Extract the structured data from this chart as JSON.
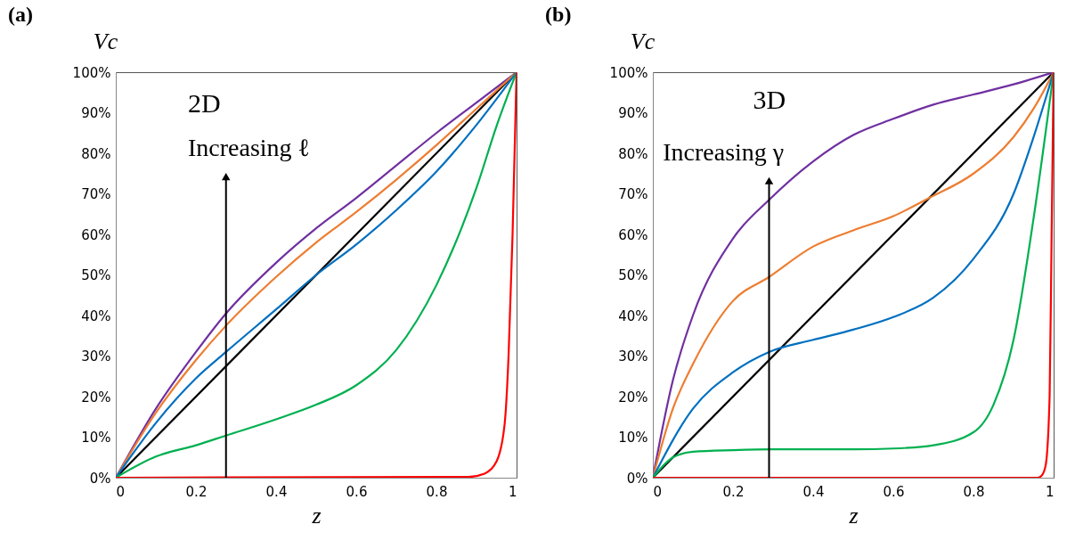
{
  "chart_data": [
    {
      "type": "line",
      "title": "(a)",
      "xlabel": "z",
      "ylabel": "Vc",
      "annotations": [
        "2D",
        "Increasing ℓ"
      ],
      "xlim": [
        0,
        1
      ],
      "ylim": [
        0,
        100
      ],
      "xticks": [
        0,
        0.2,
        0.4,
        0.6,
        0.8,
        1
      ],
      "yticks": [
        {
          "value": 0,
          "label": "0%"
        },
        {
          "value": 10,
          "label": "10%"
        },
        {
          "value": 20,
          "label": "20%"
        },
        {
          "value": 30,
          "label": "30%"
        },
        {
          "value": 40,
          "label": "40%"
        },
        {
          "value": 50,
          "label": "50%"
        },
        {
          "value": 60,
          "label": "60%"
        },
        {
          "value": 70,
          "label": "70%"
        },
        {
          "value": 80,
          "label": "80%"
        },
        {
          "value": 90,
          "label": "90%"
        },
        {
          "value": 100,
          "label": "100%"
        }
      ],
      "grid": false,
      "line_style": "solid",
      "series": [
        {
          "color": "#000000",
          "x": [
            0,
            1
          ],
          "values": [
            0,
            100
          ]
        },
        {
          "color": "#7030a0",
          "x": [
            0,
            0.1,
            0.2,
            0.275,
            0.4,
            0.5,
            0.6,
            0.7,
            0.8,
            0.9,
            1
          ],
          "values": [
            0,
            17,
            31,
            40.5,
            53,
            61.5,
            69,
            77,
            85,
            92.5,
            100
          ]
        },
        {
          "color": "#ed7d31",
          "x": [
            0,
            0.1,
            0.2,
            0.275,
            0.4,
            0.5,
            0.6,
            0.7,
            0.8,
            0.9,
            1
          ],
          "values": [
            0,
            16,
            29,
            37.5,
            49.5,
            58,
            65.5,
            73.5,
            82,
            91,
            100
          ]
        },
        {
          "color": "#0070c0",
          "x": [
            0,
            0.1,
            0.2,
            0.275,
            0.4,
            0.5,
            0.6,
            0.7,
            0.8,
            0.9,
            1
          ],
          "values": [
            0,
            13.5,
            24.5,
            31,
            41.5,
            50,
            57.5,
            66,
            75.5,
            87,
            100
          ]
        },
        {
          "color": "#00b050",
          "x": [
            0,
            0.1,
            0.2,
            0.275,
            0.4,
            0.5,
            0.6,
            0.7,
            0.8,
            0.9,
            0.95,
            1
          ],
          "values": [
            0,
            5.2,
            8,
            10.4,
            14.4,
            18,
            22.8,
            31.5,
            47.5,
            71.5,
            86.7,
            100
          ]
        },
        {
          "color": "#ff0000",
          "x": [
            0,
            0.88,
            0.92,
            0.95,
            0.97,
            0.98,
            0.99,
            1
          ],
          "values": [
            0,
            0.2,
            1,
            4,
            13,
            30,
            60,
            100
          ]
        }
      ]
    },
    {
      "type": "line",
      "title": "(b)",
      "xlabel": "z",
      "ylabel": "Vc",
      "annotations": [
        "3D",
        "Increasing γ"
      ],
      "xlim": [
        0,
        1
      ],
      "ylim": [
        0,
        100
      ],
      "xticks": [
        0,
        0.2,
        0.4,
        0.6,
        0.8,
        1
      ],
      "yticks": [
        {
          "value": 0,
          "label": "0%"
        },
        {
          "value": 10,
          "label": "10%"
        },
        {
          "value": 20,
          "label": "20%"
        },
        {
          "value": 30,
          "label": "30%"
        },
        {
          "value": 40,
          "label": "40%"
        },
        {
          "value": 50,
          "label": "50%"
        },
        {
          "value": 60,
          "label": "60%"
        },
        {
          "value": 70,
          "label": "70%"
        },
        {
          "value": 80,
          "label": "80%"
        },
        {
          "value": 90,
          "label": "90%"
        },
        {
          "value": 100,
          "label": "100%"
        }
      ],
      "grid": false,
      "line_style": "solid",
      "series": [
        {
          "color": "#000000",
          "x": [
            0,
            1
          ],
          "values": [
            0,
            100
          ]
        },
        {
          "color": "#7030a0",
          "x": [
            0,
            0.05,
            0.1,
            0.2,
            0.29,
            0.4,
            0.5,
            0.6,
            0.7,
            0.8,
            0.9,
            1
          ],
          "values": [
            0,
            24,
            40,
            59,
            68.5,
            78,
            84.5,
            88.5,
            92,
            94.5,
            97,
            100
          ]
        },
        {
          "color": "#ed7d31",
          "x": [
            0,
            0.05,
            0.1,
            0.2,
            0.29,
            0.4,
            0.5,
            0.6,
            0.69,
            0.8,
            0.9,
            0.95,
            1
          ],
          "values": [
            0,
            17,
            28,
            43.6,
            49.5,
            57,
            61,
            64.5,
            69,
            75,
            84,
            91,
            100
          ]
        },
        {
          "color": "#0070c0",
          "x": [
            0,
            0.1,
            0.2,
            0.29,
            0.4,
            0.5,
            0.6,
            0.7,
            0.8,
            0.9,
            0.95,
            1
          ],
          "values": [
            0,
            17,
            26,
            31,
            34,
            36.5,
            39.6,
            44.4,
            54,
            70,
            84,
            100
          ]
        },
        {
          "color": "#00b050",
          "x": [
            0,
            0.05,
            0.1,
            0.2,
            0.3,
            0.5,
            0.6,
            0.7,
            0.8,
            0.85,
            0.9,
            0.95,
            1
          ],
          "values": [
            0,
            5,
            6.4,
            6.8,
            7,
            7,
            7.2,
            8,
            11.2,
            18,
            34,
            64,
            100
          ]
        },
        {
          "color": "#ff0000",
          "x": [
            0,
            0.96,
            0.97,
            0.98,
            0.99,
            0.995,
            1
          ],
          "values": [
            0,
            0,
            0.5,
            3,
            20,
            60,
            100
          ]
        }
      ]
    }
  ]
}
